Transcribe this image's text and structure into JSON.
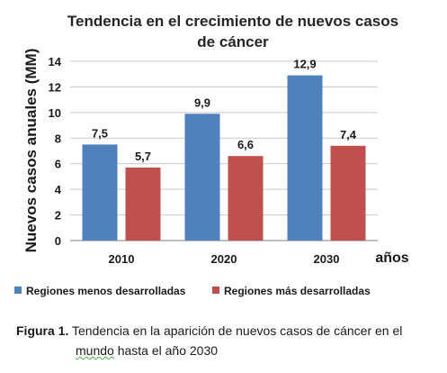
{
  "chart_data": {
    "type": "bar",
    "title_lines": [
      "Tendencia en el crecimiento de nuevos casos",
      "de cáncer"
    ],
    "ylabel": "Nuevos casos anuales (MM)",
    "xlabel": "años",
    "categories": [
      "2010",
      "2020",
      "2030"
    ],
    "ylim": [
      0,
      14
    ],
    "yticks": [
      0,
      2,
      4,
      6,
      8,
      10,
      12,
      14
    ],
    "grid": true,
    "legend_position": "bottom",
    "series": [
      {
        "name": "Regiones menos desarrolladas",
        "values": [
          7.5,
          9.9,
          12.9
        ],
        "labels": [
          "7,5",
          "9,9",
          "12,9"
        ],
        "color": "#4f81bd"
      },
      {
        "name": "Regiones más desarrolladas",
        "values": [
          5.7,
          6.6,
          7.4
        ],
        "labels": [
          "5,7",
          "6,6",
          "7,4"
        ],
        "color": "#c0504d"
      }
    ]
  },
  "caption": {
    "figure_label": "Figura 1.",
    "text_line1": "Tendencia en la aparición de nuevos casos de cáncer en el",
    "text_line2_first": "mundo",
    "text_line2_rest": " hasta el año 2030"
  }
}
